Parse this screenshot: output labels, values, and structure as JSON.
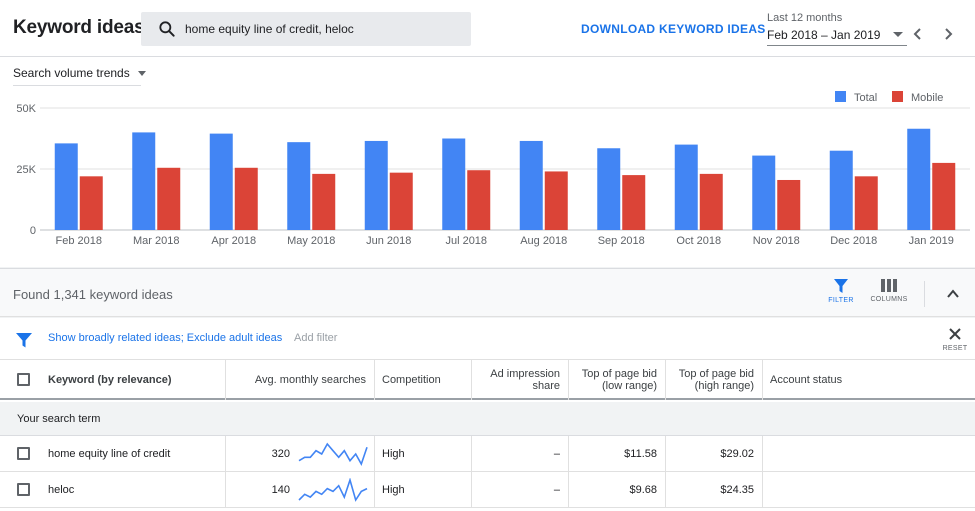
{
  "header": {
    "title": "Keyword ideas",
    "search_value": "home equity line of credit, heloc",
    "download_label": "DOWNLOAD KEYWORD IDEAS",
    "date_range_label": "Last 12 months",
    "date_range_value": "Feb 2018 – Jan 2019"
  },
  "chart_panel": {
    "dropdown_label": "Search volume trends",
    "legend": [
      {
        "label": "Total",
        "color": "#4285f4"
      },
      {
        "label": "Mobile",
        "color": "#db4437"
      }
    ]
  },
  "chart_data": {
    "type": "bar",
    "categories": [
      "Feb 2018",
      "Mar 2018",
      "Apr 2018",
      "May 2018",
      "Jun 2018",
      "Jul 2018",
      "Aug 2018",
      "Sep 2018",
      "Oct 2018",
      "Nov 2018",
      "Dec 2018",
      "Jan 2019"
    ],
    "series": [
      {
        "name": "Total",
        "color": "#4285f4",
        "values": [
          35500,
          40000,
          39500,
          36000,
          36500,
          37500,
          36500,
          33500,
          35000,
          30500,
          32500,
          41500
        ]
      },
      {
        "name": "Mobile",
        "color": "#db4437",
        "values": [
          22000,
          25500,
          25500,
          23000,
          23500,
          24500,
          24000,
          22500,
          23000,
          20500,
          22000,
          27500
        ]
      }
    ],
    "ylim": [
      0,
      50000
    ],
    "yticks": [
      0,
      25000,
      50000
    ],
    "ytick_labels": [
      "0",
      "25K",
      "50K"
    ],
    "grid": true
  },
  "results": {
    "found_text": "Found 1,341 keyword ideas",
    "filter_label": "FILTER",
    "columns_label": "COLUMNS"
  },
  "filters": {
    "active_text": "Show broadly related ideas; Exclude adult ideas",
    "add_filter": "Add filter",
    "reset_label": "RESET"
  },
  "table": {
    "columns": [
      {
        "l1": "",
        "l2": "Keyword (by relevance)"
      },
      {
        "l1": "",
        "l2": "Avg. monthly searches"
      },
      {
        "l1": "",
        "l2": "Competition"
      },
      {
        "l1": "Ad impression",
        "l2": "share"
      },
      {
        "l1": "Top of page bid",
        "l2": "(low range)"
      },
      {
        "l1": "Top of page bid",
        "l2": "(high range)"
      },
      {
        "l1": "",
        "l2": "Account status"
      }
    ],
    "group_label": "Your search term",
    "rows": [
      {
        "keyword": "home equity line of credit",
        "searches": "320",
        "trend": [
          4,
          5,
          5,
          7,
          6,
          9,
          7,
          5,
          7,
          4,
          6,
          3,
          8
        ],
        "competition": "High",
        "impression": "–",
        "bid_low": "$11.58",
        "bid_high": "$29.02"
      },
      {
        "keyword": "heloc",
        "searches": "140",
        "trend": [
          3,
          5,
          4,
          6,
          5,
          7,
          6,
          8,
          4,
          10,
          3,
          6,
          7
        ],
        "competition": "High",
        "impression": "–",
        "bid_low": "$9.68",
        "bid_high": "$24.35"
      }
    ]
  }
}
